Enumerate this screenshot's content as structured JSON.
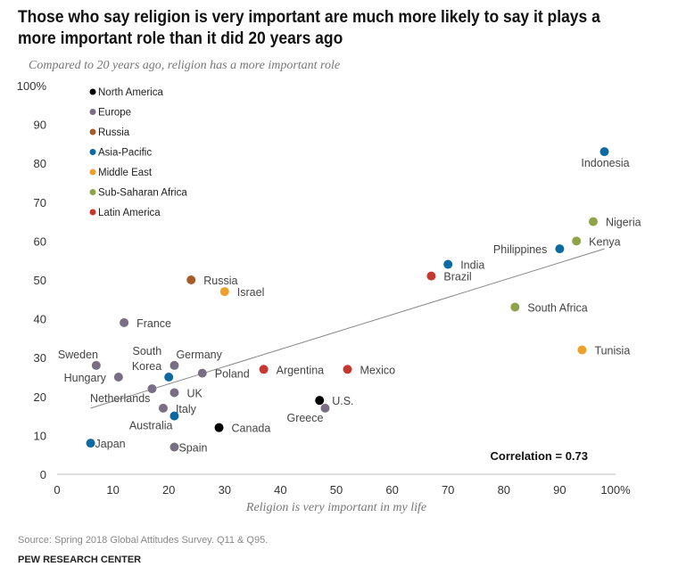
{
  "title": "Those who say religion is very important are much more likely to say it plays a more important role than it did 20 years ago",
  "source": "Source: Spring 2018 Global Attitudes Survey. Q11 & Q95.",
  "brand": "PEW RESEARCH CENTER",
  "chart_data": {
    "type": "scatter",
    "subtitle": "Compared to 20 years ago, religion has a more important role",
    "xlabel": "Religion is very important in my life",
    "ylabel": "Compared to 20 years ago, religion has a more important role",
    "xlim": [
      0,
      100
    ],
    "ylim": [
      0,
      100
    ],
    "xticks": [
      "0",
      "10",
      "20",
      "30",
      "40",
      "50",
      "60",
      "70",
      "80",
      "90",
      "100%"
    ],
    "yticks": [
      "0",
      "10",
      "20",
      "30",
      "40",
      "50",
      "60",
      "70",
      "80",
      "90",
      "100%"
    ],
    "grid": false,
    "annotation": "Correlation = 0.73",
    "trendline": {
      "x": [
        6,
        98
      ],
      "y": [
        17,
        58
      ]
    },
    "legend_position": "top-left",
    "regions": [
      {
        "name": "North America",
        "color": "#000000"
      },
      {
        "name": "Europe",
        "color": "#7a6e85"
      },
      {
        "name": "Russia",
        "color": "#a85c2a"
      },
      {
        "name": "Asia-Pacific",
        "color": "#0b6aa2"
      },
      {
        "name": "Middle East",
        "color": "#eda12b"
      },
      {
        "name": "Sub-Saharan Africa",
        "color": "#8ea34a"
      },
      {
        "name": "Latin America",
        "color": "#c8372d"
      }
    ],
    "points": [
      {
        "country": "Indonesia",
        "region": 3,
        "x": 98,
        "y": 83,
        "lpos": "below"
      },
      {
        "country": "Nigeria",
        "region": 5,
        "x": 96,
        "y": 65,
        "lpos": "right"
      },
      {
        "country": "Kenya",
        "region": 5,
        "x": 93,
        "y": 60,
        "lpos": "right"
      },
      {
        "country": "Philippines",
        "region": 3,
        "x": 90,
        "y": 58,
        "lpos": "left"
      },
      {
        "country": "India",
        "region": 3,
        "x": 70,
        "y": 54,
        "lpos": "right"
      },
      {
        "country": "Brazil",
        "region": 6,
        "x": 67,
        "y": 51,
        "lpos": "right"
      },
      {
        "country": "South Africa",
        "region": 5,
        "x": 82,
        "y": 43,
        "lpos": "right"
      },
      {
        "country": "Tunisia",
        "region": 4,
        "x": 94,
        "y": 32,
        "lpos": "right"
      },
      {
        "country": "Russia",
        "region": 2,
        "x": 24,
        "y": 50,
        "lpos": "right"
      },
      {
        "country": "Israel",
        "region": 4,
        "x": 30,
        "y": 47,
        "lpos": "right"
      },
      {
        "country": "France",
        "region": 1,
        "x": 12,
        "y": 39,
        "lpos": "right"
      },
      {
        "country": "Sweden",
        "region": 1,
        "x": 7,
        "y": 28,
        "lpos": "above-left"
      },
      {
        "country": "Hungary",
        "region": 1,
        "x": 11,
        "y": 25,
        "lpos": "left"
      },
      {
        "country": "Germany",
        "region": 1,
        "x": 21,
        "y": 28,
        "lpos": "above-right"
      },
      {
        "country": "South Korea",
        "region": 3,
        "x": 20,
        "y": 25,
        "lpos": "above-left2"
      },
      {
        "country": "Poland",
        "region": 1,
        "x": 26,
        "y": 26,
        "lpos": "right"
      },
      {
        "country": "Netherlands",
        "region": 1,
        "x": 17,
        "y": 22,
        "lpos": "below-left"
      },
      {
        "country": "UK",
        "region": 1,
        "x": 21,
        "y": 21,
        "lpos": "right"
      },
      {
        "country": "Italy",
        "region": 1,
        "x": 19,
        "y": 17,
        "lpos": "right"
      },
      {
        "country": "Australia",
        "region": 3,
        "x": 21,
        "y": 15,
        "lpos": "below-left"
      },
      {
        "country": "Canada",
        "region": 0,
        "x": 29,
        "y": 12,
        "lpos": "right"
      },
      {
        "country": "Japan",
        "region": 3,
        "x": 6,
        "y": 8,
        "lpos": "right-tight"
      },
      {
        "country": "Spain",
        "region": 1,
        "x": 21,
        "y": 7,
        "lpos": "right-tight"
      },
      {
        "country": "Argentina",
        "region": 6,
        "x": 37,
        "y": 27,
        "lpos": "right"
      },
      {
        "country": "Mexico",
        "region": 6,
        "x": 52,
        "y": 27,
        "lpos": "right"
      },
      {
        "country": "U.S.",
        "region": 0,
        "x": 47,
        "y": 19,
        "lpos": "right"
      },
      {
        "country": "Greece",
        "region": 1,
        "x": 48,
        "y": 17,
        "lpos": "below-left"
      }
    ]
  }
}
